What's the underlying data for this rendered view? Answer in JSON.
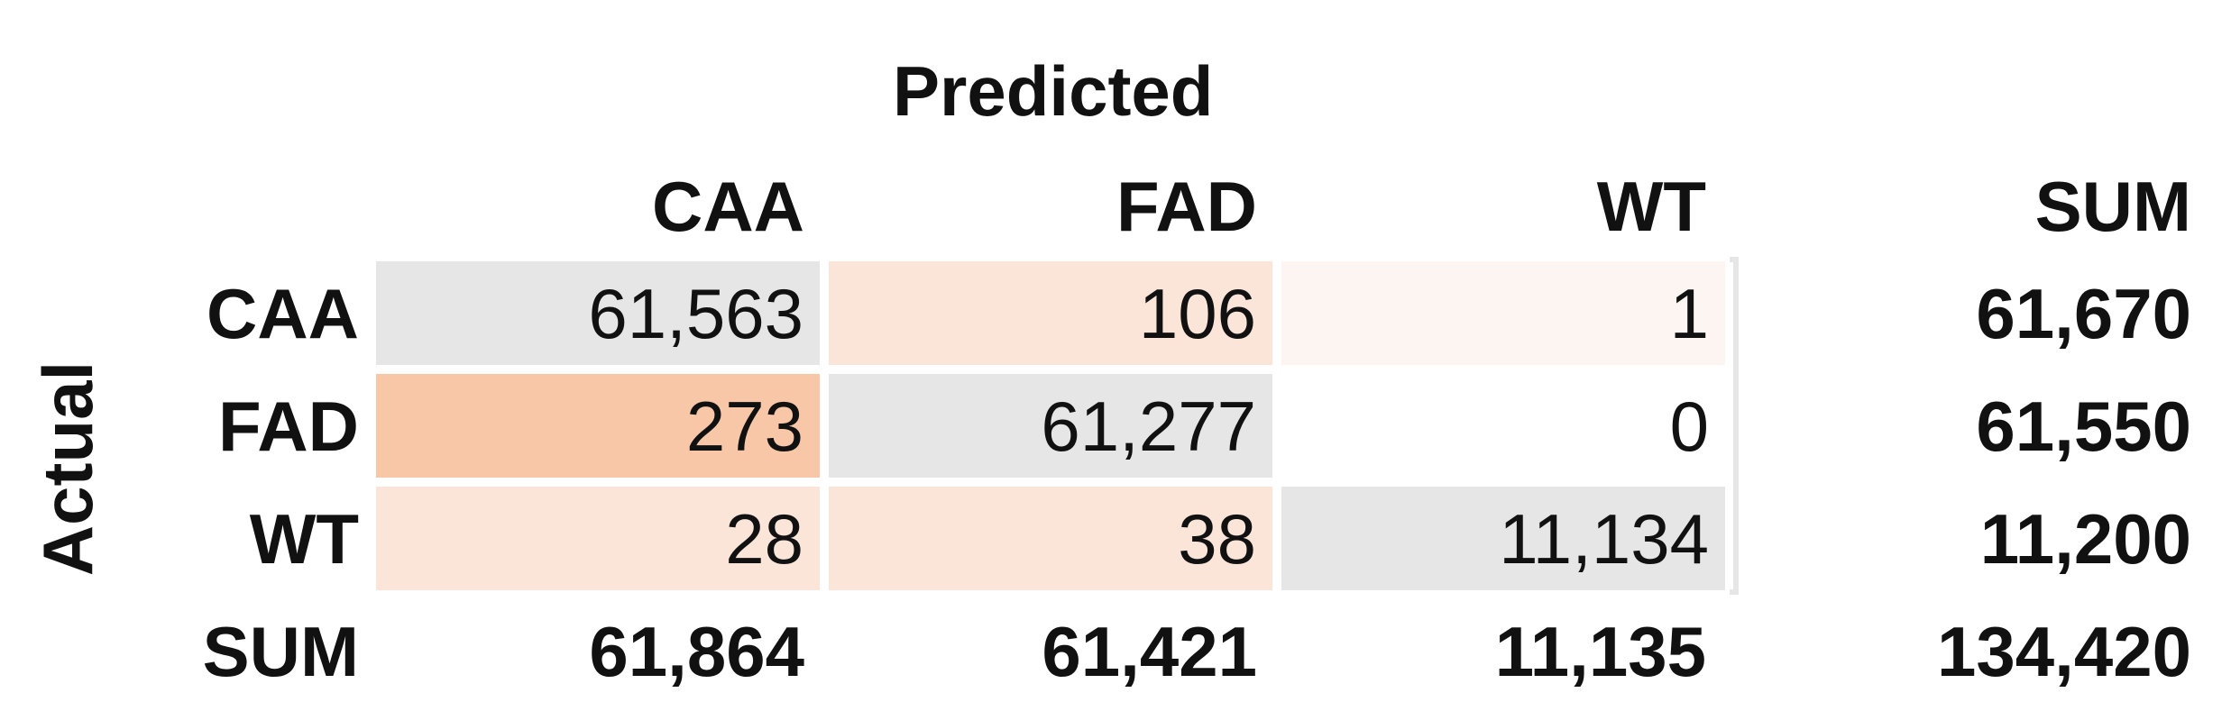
{
  "chart_data": {
    "type": "table",
    "title": "",
    "column_axis_label": "Predicted",
    "row_axis_label": "Actual",
    "columns": [
      "CAA",
      "FAD",
      "WT",
      "SUM"
    ],
    "rows": [
      {
        "label": "CAA",
        "values": [
          "61,563",
          "106",
          "1"
        ],
        "sum": "61,670"
      },
      {
        "label": "FAD",
        "values": [
          "273",
          "61,277",
          "0"
        ],
        "sum": "61,550"
      },
      {
        "label": "WT",
        "values": [
          "28",
          "38",
          "11,134"
        ],
        "sum": "11,200"
      }
    ],
    "sum_row": {
      "label": "SUM",
      "values": [
        "61,864",
        "61,421",
        "11,135"
      ],
      "total": "134,420"
    },
    "cell_colors": [
      [
        "#e6e6e6",
        "#fbe4d8",
        "#fdf5f2"
      ],
      [
        "#f7c7a7",
        "#e6e6e6",
        "#ffffff"
      ],
      [
        "#fbe4d8",
        "#fbe4d8",
        "#e6e6e6"
      ]
    ]
  }
}
